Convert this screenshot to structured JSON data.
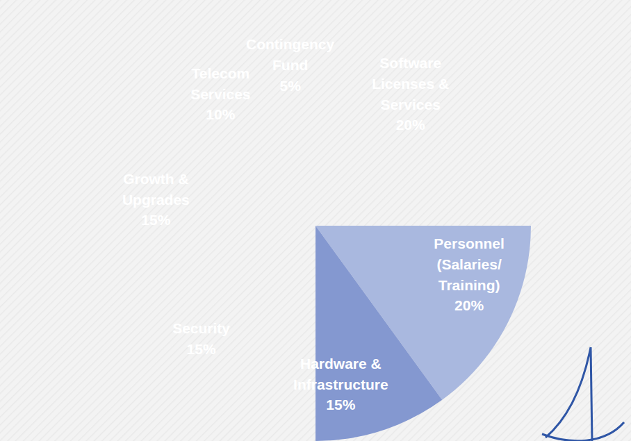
{
  "chart_data": {
    "type": "pie",
    "categories": [
      "Software Licenses & Services",
      "Personnel (Salaries/Training)",
      "Hardware & Infrastructure",
      "Security",
      "Growth & Upgrades",
      "Telecom Services",
      "Contingency Fund"
    ],
    "values": [
      20,
      20,
      15,
      15,
      15,
      10,
      5
    ],
    "value_labels": [
      "20%",
      "20%",
      "15%",
      "15%",
      "15%",
      "10%",
      "5%"
    ],
    "colors": [
      "#c4cde8",
      "#a9b8df",
      "#8498d0",
      "#4472c4",
      "#3c66b6",
      "#3659a2",
      "#2d4a86"
    ],
    "data_labels": true
  }
}
